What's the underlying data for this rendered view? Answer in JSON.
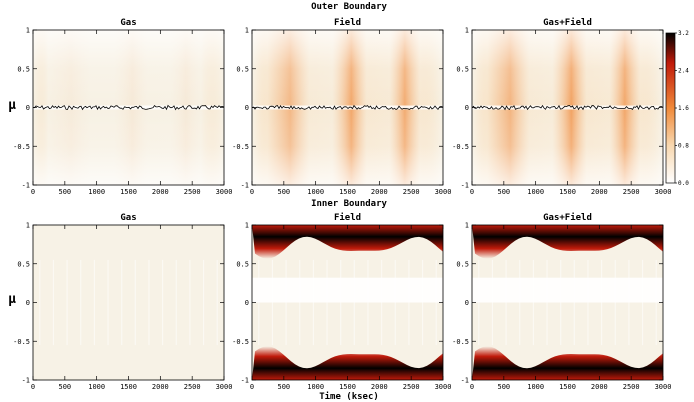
{
  "figure": {
    "top_row_label": "Outer Boundary",
    "bottom_row_label": "Inner Boundary",
    "xlabel": "Time (ksec)",
    "ylabel": "μ"
  },
  "colors": {
    "base": "#f7f2e6",
    "light": "#f8d8b0",
    "orange": "#f08a3a",
    "red": "#c01a0a",
    "black": "#000000"
  },
  "chart_data": [
    {
      "type": "heatmap",
      "row": "outer",
      "title": "Gas",
      "xlim": [
        0,
        3000
      ],
      "ylim": [
        -1,
        1
      ],
      "xticks": [
        0,
        500,
        1000,
        1500,
        2000,
        2500,
        3000
      ],
      "yticks": [
        1,
        0.5,
        0,
        -0.5,
        -1
      ],
      "level": 0.1
    },
    {
      "type": "heatmap",
      "row": "outer",
      "title": "Field",
      "xlim": [
        0,
        3000
      ],
      "ylim": [
        -1,
        1
      ],
      "xticks": [
        0,
        500,
        1000,
        1500,
        2000,
        2500,
        3000
      ],
      "yticks": [
        1,
        0.5,
        0,
        -0.5,
        -1
      ],
      "level": 0.8
    },
    {
      "type": "heatmap",
      "row": "outer",
      "title": "Gas+Field",
      "xlim": [
        0,
        3000
      ],
      "ylim": [
        -1,
        1
      ],
      "xticks": [
        0,
        500,
        1000,
        1500,
        2000,
        2500,
        3000
      ],
      "yticks": [
        1,
        0.5,
        0,
        -0.5,
        -1
      ],
      "level": 0.85
    },
    {
      "type": "heatmap",
      "row": "inner",
      "title": "Gas",
      "xlim": [
        0,
        3000
      ],
      "ylim": [
        -1,
        1
      ],
      "xticks": [
        0,
        500,
        1000,
        1500,
        2000,
        2500,
        3000
      ],
      "yticks": [
        1,
        0.5,
        0,
        -0.5,
        -1
      ],
      "level": 0.05
    },
    {
      "type": "heatmap",
      "row": "inner",
      "title": "Field",
      "xlim": [
        0,
        3000
      ],
      "ylim": [
        -1,
        1
      ],
      "xticks": [
        0,
        500,
        1000,
        1500,
        2000,
        2500,
        3000
      ],
      "yticks": [
        1,
        0.5,
        0,
        -0.5,
        -1
      ],
      "level": 1.0
    },
    {
      "type": "heatmap",
      "row": "inner",
      "title": "Gas+Field",
      "xlim": [
        0,
        3000
      ],
      "ylim": [
        -1,
        1
      ],
      "xticks": [
        0,
        500,
        1000,
        1500,
        2000,
        2500,
        3000
      ],
      "yticks": [
        1,
        0.5,
        0,
        -0.5,
        -1
      ],
      "level": 1.0
    }
  ],
  "colorbar": {
    "range": [
      0.0,
      3.2
    ],
    "ticks": [
      "3.2",
      "2.4",
      "1.6",
      "0.8",
      "0.0"
    ]
  }
}
